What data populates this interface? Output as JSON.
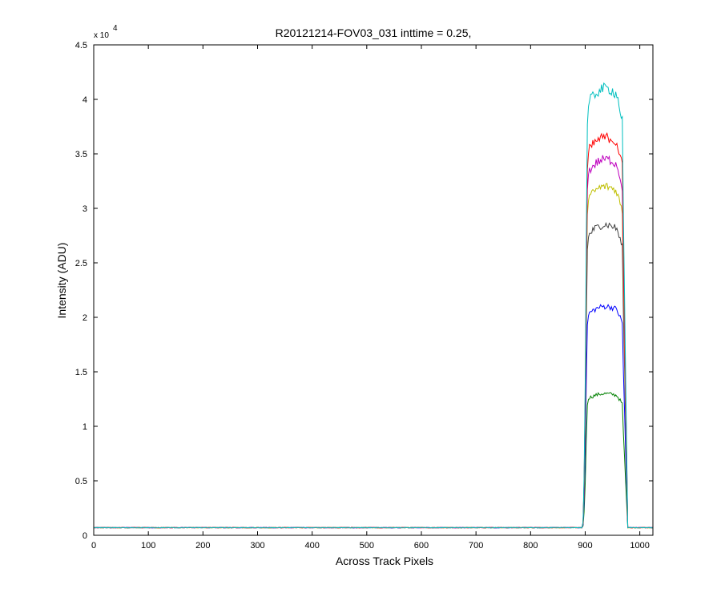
{
  "chart_data": {
    "type": "line",
    "title": "R20121214-FOV03_031 inttime = 0.25,",
    "xlabel": "Across Track Pixels",
    "ylabel": "Intensity (ADU)",
    "y_multiplier_base": "x 10",
    "y_multiplier_exp": "4",
    "xlim": [
      0,
      1024
    ],
    "ylim": [
      0,
      45000
    ],
    "x_ticks": [
      0,
      100,
      200,
      300,
      400,
      500,
      600,
      700,
      800,
      900,
      1000
    ],
    "y_ticks": [
      0,
      0.5,
      1,
      1.5,
      2,
      2.5,
      3,
      3.5,
      4,
      4.5
    ],
    "y_tick_labels": [
      "0",
      "0.5",
      "1",
      "1.5",
      "2",
      "2.5",
      "3",
      "3.5",
      "4",
      "4.5"
    ],
    "x_tick_labels": [
      "0",
      "100",
      "200",
      "300",
      "400",
      "500",
      "600",
      "700",
      "800",
      "900",
      "1000"
    ],
    "grid": false,
    "legend": "none",
    "baseline": 700,
    "plateau_start": 903,
    "plateau_end": 972,
    "series": [
      {
        "color": "#00bfbf",
        "plateau": 41000
      },
      {
        "color": "#ff0000",
        "plateau": 36500
      },
      {
        "color": "#bf00bf",
        "plateau": 34500
      },
      {
        "color": "#bfbf00",
        "plateau": 32000
      },
      {
        "color": "#404040",
        "plateau": 28500
      },
      {
        "color": "#0000ff",
        "plateau": 21000
      },
      {
        "color": "#008000",
        "plateau": 13000
      }
    ]
  }
}
